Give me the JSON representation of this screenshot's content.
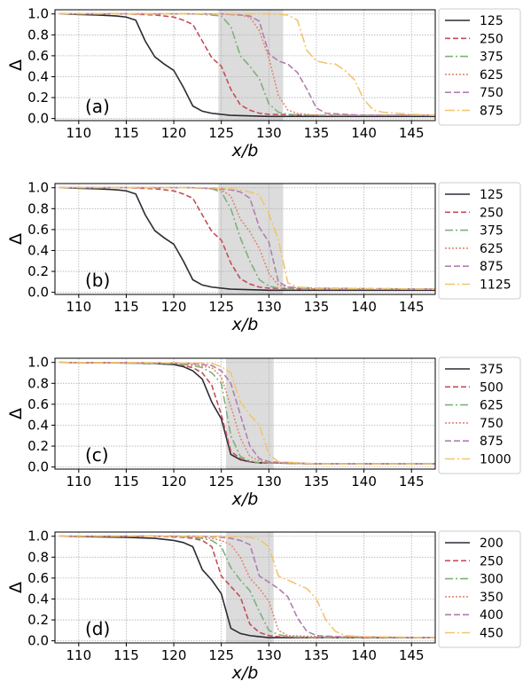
{
  "chart_data": [
    {
      "type": "line",
      "panel_label": "(a)",
      "xlabel": "x/b",
      "ylabel": "Δ",
      "xlim": [
        107.5,
        147.5
      ],
      "ylim": [
        -0.02,
        1.04
      ],
      "xticks": [
        110,
        115,
        120,
        125,
        130,
        135,
        140,
        145
      ],
      "yticks": [
        0.0,
        0.2,
        0.4,
        0.6,
        0.8,
        1.0
      ],
      "ytick_labels": [
        "0.0",
        "0.2",
        "0.4",
        "0.6",
        "0.8",
        "1.0"
      ],
      "grid": true,
      "legend_position": "outside-right",
      "shaded_region": [
        124.7,
        131.5
      ],
      "series": [
        {
          "name": "125",
          "x": [
            108,
            112,
            114,
            115,
            116,
            117,
            118,
            119,
            120,
            121,
            122,
            123,
            124,
            125,
            126,
            130,
            135,
            140,
            147.5
          ],
          "y": [
            1.0,
            0.99,
            0.98,
            0.97,
            0.94,
            0.74,
            0.59,
            0.52,
            0.46,
            0.3,
            0.12,
            0.07,
            0.05,
            0.04,
            0.03,
            0.02,
            0.02,
            0.02,
            0.02
          ]
        },
        {
          "name": "250",
          "x": [
            108,
            115,
            118,
            119,
            120,
            121,
            122,
            123,
            124,
            125,
            126,
            127,
            128,
            129,
            130,
            135,
            147.5
          ],
          "y": [
            1.0,
            1.0,
            0.99,
            0.98,
            0.97,
            0.94,
            0.9,
            0.74,
            0.58,
            0.5,
            0.28,
            0.13,
            0.08,
            0.05,
            0.04,
            0.03,
            0.03
          ]
        },
        {
          "name": "375",
          "x": [
            108,
            120,
            122,
            124,
            125,
            126,
            127,
            128,
            129,
            130,
            131,
            132,
            135,
            147.5
          ],
          "y": [
            1.0,
            1.0,
            1.0,
            0.99,
            0.98,
            0.88,
            0.6,
            0.5,
            0.38,
            0.14,
            0.06,
            0.04,
            0.03,
            0.03
          ]
        },
        {
          "name": "625",
          "x": [
            108,
            125,
            127,
            128,
            129,
            130,
            131,
            132,
            133,
            134,
            135,
            140,
            147.5
          ],
          "y": [
            1.0,
            1.0,
            0.99,
            0.97,
            0.84,
            0.58,
            0.22,
            0.08,
            0.05,
            0.04,
            0.03,
            0.03,
            0.03
          ]
        },
        {
          "name": "750",
          "x": [
            108,
            125,
            127,
            128,
            129,
            130,
            131,
            132,
            133,
            134,
            135,
            136,
            138,
            140,
            147.5
          ],
          "y": [
            1.0,
            1.0,
            0.99,
            0.98,
            0.93,
            0.62,
            0.55,
            0.52,
            0.44,
            0.28,
            0.1,
            0.05,
            0.04,
            0.03,
            0.03
          ]
        },
        {
          "name": "875",
          "x": [
            108,
            125,
            130,
            132,
            133,
            134,
            135,
            136,
            137,
            138,
            139,
            140,
            141,
            142,
            145,
            147.5
          ],
          "y": [
            1.0,
            1.0,
            1.0,
            0.99,
            0.94,
            0.65,
            0.55,
            0.53,
            0.52,
            0.46,
            0.37,
            0.18,
            0.08,
            0.06,
            0.04,
            0.03
          ]
        }
      ]
    },
    {
      "type": "line",
      "panel_label": "(b)",
      "xlabel": "x/b",
      "ylabel": "Δ",
      "xlim": [
        107.5,
        147.5
      ],
      "ylim": [
        -0.02,
        1.04
      ],
      "xticks": [
        110,
        115,
        120,
        125,
        130,
        135,
        140,
        145
      ],
      "yticks": [
        0.0,
        0.2,
        0.4,
        0.6,
        0.8,
        1.0
      ],
      "ytick_labels": [
        "0.0",
        "0.2",
        "0.4",
        "0.6",
        "0.8",
        "1.0"
      ],
      "grid": true,
      "legend_position": "outside-right",
      "shaded_region": [
        124.7,
        131.5
      ],
      "series": [
        {
          "name": "125",
          "x": [
            108,
            112,
            114,
            115,
            116,
            117,
            118,
            119,
            120,
            121,
            122,
            123,
            124,
            125,
            126,
            130,
            135,
            140,
            147.5
          ],
          "y": [
            1.0,
            0.99,
            0.98,
            0.97,
            0.94,
            0.74,
            0.59,
            0.52,
            0.46,
            0.3,
            0.12,
            0.07,
            0.05,
            0.04,
            0.03,
            0.02,
            0.02,
            0.02,
            0.02
          ]
        },
        {
          "name": "250",
          "x": [
            108,
            115,
            118,
            119,
            120,
            121,
            122,
            123,
            124,
            125,
            126,
            127,
            128,
            129,
            130,
            135,
            147.5
          ],
          "y": [
            1.0,
            1.0,
            0.99,
            0.98,
            0.97,
            0.94,
            0.9,
            0.74,
            0.58,
            0.5,
            0.28,
            0.13,
            0.08,
            0.05,
            0.04,
            0.03,
            0.03
          ]
        },
        {
          "name": "375",
          "x": [
            108,
            120,
            122,
            124,
            125,
            126,
            127,
            128,
            129,
            130,
            131,
            132,
            135,
            147.5
          ],
          "y": [
            1.0,
            1.0,
            1.0,
            0.99,
            0.96,
            0.8,
            0.52,
            0.3,
            0.12,
            0.06,
            0.04,
            0.03,
            0.03,
            0.03
          ]
        },
        {
          "name": "625",
          "x": [
            108,
            122,
            124,
            125,
            126,
            127,
            128,
            129,
            130,
            131,
            132,
            135,
            147.5
          ],
          "y": [
            1.0,
            1.0,
            0.99,
            0.98,
            0.92,
            0.7,
            0.58,
            0.42,
            0.18,
            0.07,
            0.05,
            0.03,
            0.03
          ]
        },
        {
          "name": "875",
          "x": [
            108,
            122,
            125,
            126,
            127,
            128,
            129,
            130,
            131,
            132,
            135,
            147.5
          ],
          "y": [
            1.0,
            1.0,
            0.99,
            0.98,
            0.96,
            0.9,
            0.62,
            0.48,
            0.1,
            0.05,
            0.04,
            0.03
          ]
        },
        {
          "name": "1125",
          "x": [
            108,
            124,
            126,
            127,
            128,
            129,
            130,
            131,
            132,
            133,
            135,
            147.5
          ],
          "y": [
            1.0,
            1.0,
            0.99,
            0.98,
            0.96,
            0.93,
            0.75,
            0.5,
            0.09,
            0.05,
            0.04,
            0.03
          ]
        }
      ]
    },
    {
      "type": "line",
      "panel_label": "(c)",
      "xlabel": "x/b",
      "ylabel": "Δ",
      "xlim": [
        107.5,
        147.5
      ],
      "ylim": [
        -0.02,
        1.04
      ],
      "xticks": [
        110,
        115,
        120,
        125,
        130,
        135,
        140,
        145
      ],
      "yticks": [
        0.0,
        0.2,
        0.4,
        0.6,
        0.8,
        1.0
      ],
      "ytick_labels": [
        "0.0",
        "0.2",
        "0.4",
        "0.6",
        "0.8",
        "1.0"
      ],
      "grid": true,
      "legend_position": "outside-right",
      "shaded_region": [
        125.5,
        130.5
      ],
      "series": [
        {
          "name": "375",
          "x": [
            108,
            115,
            118,
            120,
            121,
            122,
            123,
            124,
            125,
            126,
            127,
            128,
            129,
            130,
            135,
            147.5
          ],
          "y": [
            1.0,
            0.995,
            0.99,
            0.98,
            0.96,
            0.92,
            0.84,
            0.62,
            0.46,
            0.12,
            0.07,
            0.05,
            0.04,
            0.04,
            0.03,
            0.03
          ]
        },
        {
          "name": "500",
          "x": [
            108,
            118,
            120,
            121,
            122,
            123,
            124,
            125,
            126,
            127,
            128,
            129,
            130,
            135,
            147.5
          ],
          "y": [
            1.0,
            0.995,
            0.99,
            0.97,
            0.95,
            0.9,
            0.78,
            0.5,
            0.15,
            0.08,
            0.05,
            0.04,
            0.04,
            0.03,
            0.03
          ]
        },
        {
          "name": "625",
          "x": [
            108,
            120,
            122,
            123,
            124,
            125,
            126,
            127,
            128,
            129,
            130,
            135,
            147.5
          ],
          "y": [
            1.0,
            0.99,
            0.97,
            0.95,
            0.9,
            0.8,
            0.3,
            0.1,
            0.06,
            0.04,
            0.04,
            0.03,
            0.03
          ]
        },
        {
          "name": "750",
          "x": [
            108,
            120,
            122,
            124,
            125,
            126,
            127,
            128,
            129,
            130,
            135,
            147.5
          ],
          "y": [
            1.0,
            0.995,
            0.98,
            0.95,
            0.86,
            0.58,
            0.28,
            0.1,
            0.06,
            0.04,
            0.03,
            0.03
          ]
        },
        {
          "name": "875",
          "x": [
            108,
            120,
            122,
            124,
            125,
            126,
            127,
            128,
            129,
            130,
            135,
            147.5
          ],
          "y": [
            1.0,
            0.995,
            0.99,
            0.97,
            0.92,
            0.8,
            0.5,
            0.2,
            0.08,
            0.05,
            0.03,
            0.03
          ]
        },
        {
          "name": "1000",
          "x": [
            108,
            122,
            124,
            125,
            126,
            127,
            128,
            129,
            130,
            131,
            135,
            147.5
          ],
          "y": [
            1.0,
            0.995,
            0.99,
            0.96,
            0.9,
            0.62,
            0.5,
            0.4,
            0.12,
            0.05,
            0.03,
            0.03
          ]
        }
      ]
    },
    {
      "type": "line",
      "panel_label": "(d)",
      "xlabel": "x/b",
      "ylabel": "Δ",
      "xlim": [
        107.5,
        147.5
      ],
      "ylim": [
        -0.02,
        1.04
      ],
      "xticks": [
        110,
        115,
        120,
        125,
        130,
        135,
        140,
        145
      ],
      "yticks": [
        0.0,
        0.2,
        0.4,
        0.6,
        0.8,
        1.0
      ],
      "ytick_labels": [
        "0.0",
        "0.2",
        "0.4",
        "0.6",
        "0.8",
        "1.0"
      ],
      "grid": true,
      "legend_position": "outside-right",
      "shaded_region": [
        125.5,
        130.5
      ],
      "series": [
        {
          "name": "200",
          "x": [
            108,
            115,
            118,
            120,
            121,
            122,
            123,
            124,
            125,
            126,
            127,
            128,
            129,
            130,
            135,
            147.5
          ],
          "y": [
            1.0,
            0.99,
            0.98,
            0.96,
            0.94,
            0.9,
            0.68,
            0.58,
            0.45,
            0.12,
            0.07,
            0.05,
            0.04,
            0.03,
            0.03,
            0.03
          ]
        },
        {
          "name": "250",
          "x": [
            108,
            118,
            121,
            122,
            123,
            124,
            125,
            126,
            127,
            128,
            129,
            130,
            131,
            135,
            147.5
          ],
          "y": [
            1.0,
            1.0,
            0.99,
            0.98,
            0.96,
            0.9,
            0.62,
            0.52,
            0.42,
            0.16,
            0.08,
            0.05,
            0.04,
            0.03,
            0.03
          ]
        },
        {
          "name": "300",
          "x": [
            108,
            120,
            122,
            123,
            124,
            125,
            126,
            127,
            128,
            129,
            130,
            131,
            132,
            135,
            147.5
          ],
          "y": [
            1.0,
            1.0,
            0.99,
            0.98,
            0.96,
            0.9,
            0.7,
            0.58,
            0.48,
            0.28,
            0.1,
            0.06,
            0.04,
            0.03,
            0.03
          ]
        },
        {
          "name": "350",
          "x": [
            108,
            121,
            123,
            124,
            125,
            126,
            127,
            128,
            129,
            130,
            131,
            132,
            135,
            147.5
          ],
          "y": [
            1.0,
            1.0,
            0.99,
            0.98,
            0.96,
            0.92,
            0.8,
            0.6,
            0.5,
            0.38,
            0.1,
            0.05,
            0.04,
            0.03
          ]
        },
        {
          "name": "400",
          "x": [
            108,
            123,
            125,
            126,
            127,
            128,
            129,
            130,
            131,
            132,
            133,
            134,
            135,
            137,
            147.5
          ],
          "y": [
            1.0,
            1.0,
            0.99,
            0.98,
            0.96,
            0.92,
            0.62,
            0.56,
            0.5,
            0.42,
            0.22,
            0.09,
            0.05,
            0.04,
            0.03
          ]
        },
        {
          "name": "450",
          "x": [
            108,
            125,
            128,
            129,
            130,
            131,
            132,
            133,
            134,
            135,
            136,
            137,
            138,
            140,
            147.5
          ],
          "y": [
            1.0,
            1.0,
            0.99,
            0.97,
            0.9,
            0.62,
            0.58,
            0.54,
            0.5,
            0.4,
            0.2,
            0.09,
            0.05,
            0.04,
            0.03
          ]
        }
      ]
    }
  ],
  "series_styles": [
    {
      "color": "#2b2b35",
      "dash": "none"
    },
    {
      "color": "#c44e58",
      "dash": "6,3"
    },
    {
      "color": "#7fb07a",
      "dash": "9,3,2,3"
    },
    {
      "color": "#e08a6e",
      "dash": "2,2"
    },
    {
      "color": "#b07fb0",
      "dash": "7,3"
    },
    {
      "color": "#f2c46f",
      "dash": "11,3,2,3"
    }
  ],
  "colors": {
    "grid": "#b0b0b0",
    "shade": "#dcdcdc",
    "axes": "#000000"
  }
}
